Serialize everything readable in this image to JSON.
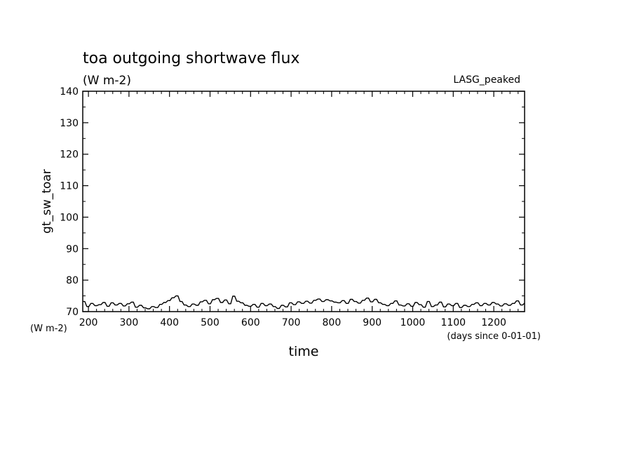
{
  "chart_data": {
    "type": "line",
    "title": "toa outgoing shortwave flux",
    "units_label": "(W m-2)",
    "model_label": "LASG_peaked",
    "ylabel": "gt_sw_toar",
    "y_units_label": "(W m-2)",
    "xlabel": "time",
    "x_units_label": "(days since 0-01-01)",
    "xlim": [
      186,
      1276
    ],
    "ylim": [
      70,
      140
    ],
    "x_ticks": [
      200,
      300,
      400,
      500,
      600,
      700,
      800,
      900,
      1000,
      1100,
      1200
    ],
    "y_ticks": [
      70,
      80,
      90,
      100,
      110,
      120,
      130,
      140
    ],
    "grid": false,
    "series": [
      {
        "color": "#000000",
        "x": [
          186,
          196,
          206,
          216,
          226,
          236,
          246,
          256,
          266,
          276,
          286,
          296,
          306,
          316,
          326,
          336,
          346,
          356,
          366,
          376,
          386,
          396,
          406,
          416,
          426,
          436,
          446,
          456,
          466,
          476,
          486,
          496,
          506,
          516,
          526,
          536,
          546,
          556,
          566,
          576,
          586,
          596,
          606,
          616,
          626,
          636,
          646,
          656,
          666,
          676,
          686,
          696,
          706,
          716,
          726,
          736,
          746,
          756,
          766,
          776,
          786,
          796,
          806,
          816,
          826,
          836,
          846,
          856,
          866,
          876,
          886,
          896,
          906,
          916,
          926,
          936,
          946,
          956,
          966,
          976,
          986,
          996,
          1006,
          1016,
          1026,
          1036,
          1046,
          1056,
          1066,
          1076,
          1086,
          1096,
          1106,
          1116,
          1126,
          1136,
          1146,
          1156,
          1166,
          1176,
          1186,
          1196,
          1206,
          1216,
          1226,
          1236,
          1246,
          1256,
          1266,
          1276
        ],
        "y": [
          73.2,
          71.6,
          72.6,
          71.9,
          72.2,
          72.9,
          71.7,
          72.8,
          72.1,
          72.6,
          71.8,
          72.5,
          73.0,
          71.4,
          72.0,
          71.2,
          70.9,
          71.6,
          71.3,
          72.3,
          72.9,
          73.5,
          74.4,
          75.0,
          73.2,
          72.1,
          71.6,
          72.4,
          72.0,
          73.1,
          73.6,
          72.5,
          73.8,
          74.2,
          72.9,
          73.7,
          72.5,
          74.9,
          73.3,
          72.8,
          72.0,
          71.7,
          72.3,
          71.4,
          72.6,
          71.9,
          72.4,
          71.6,
          71.0,
          72.0,
          71.5,
          72.8,
          72.2,
          73.1,
          72.6,
          73.3,
          72.7,
          73.6,
          74.0,
          73.2,
          73.8,
          73.4,
          73.0,
          72.8,
          73.5,
          72.6,
          73.9,
          73.2,
          72.7,
          73.6,
          74.3,
          73.1,
          73.9,
          72.8,
          72.3,
          71.9,
          72.6,
          73.4,
          72.1,
          71.8,
          72.5,
          71.7,
          72.9,
          72.2,
          71.4,
          73.2,
          71.6,
          72.1,
          73.0,
          71.5,
          72.4,
          71.9,
          72.6,
          71.3,
          72.0,
          71.6,
          72.3,
          72.8,
          71.9,
          72.6,
          72.1,
          72.9,
          72.4,
          71.8,
          72.5,
          72.0,
          72.6,
          73.4,
          72.1,
          72.7
        ]
      }
    ]
  }
}
